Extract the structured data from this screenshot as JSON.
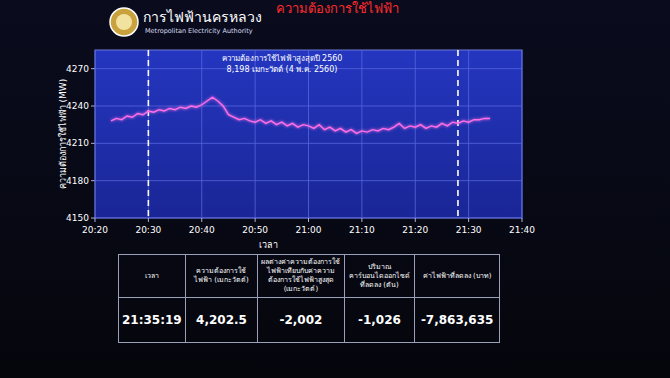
{
  "header": {
    "title": "การไฟฟ้านครหลวง",
    "subtitle": "Metropolitan Electricity Authority",
    "banner": "ความต้องการใช้ไฟฟ้า"
  },
  "chart_data": {
    "type": "line",
    "color": "#ff6ee6",
    "grid": true,
    "annotations": [
      "ความต้องการใช้ไฟฟ้าสูงสุดปี 2560",
      "8,198 เมกะวัตต์ (4 พ.ค. 2560)"
    ],
    "x_label": "เวลา",
    "y_label": "ความต้องการใช้ไฟฟ้า (MW)",
    "xlim": [
      1220,
      1300
    ],
    "xticks": [
      {
        "value": 1220,
        "label": "20:20"
      },
      {
        "value": 1230,
        "label": "20:30"
      },
      {
        "value": 1240,
        "label": "20:40"
      },
      {
        "value": 1250,
        "label": "20:50"
      },
      {
        "value": 1260,
        "label": "21:00"
      },
      {
        "value": 1270,
        "label": "21:10"
      },
      {
        "value": 1280,
        "label": "21:20"
      },
      {
        "value": 1290,
        "label": "21:30"
      },
      {
        "value": 1300,
        "label": "21:40"
      }
    ],
    "ylim": [
      4150,
      4285
    ],
    "yticks": [
      4150,
      4180,
      4210,
      4240,
      4270
    ],
    "vlines": [
      1230,
      1288
    ],
    "x": [
      1223,
      1224,
      1225,
      1226,
      1227,
      1228,
      1229,
      1230,
      1231,
      1232,
      1233,
      1234,
      1235,
      1236,
      1237,
      1238,
      1239,
      1240,
      1241,
      1242,
      1243,
      1244,
      1245,
      1246,
      1247,
      1248,
      1249,
      1250,
      1251,
      1252,
      1253,
      1254,
      1255,
      1256,
      1257,
      1258,
      1259,
      1260,
      1261,
      1262,
      1263,
      1264,
      1265,
      1266,
      1267,
      1268,
      1269,
      1270,
      1271,
      1272,
      1273,
      1274,
      1275,
      1276,
      1277,
      1278,
      1279,
      1280,
      1281,
      1282,
      1283,
      1284,
      1285,
      1286,
      1287,
      1288,
      1289,
      1290,
      1291,
      1292,
      1293,
      1294
    ],
    "values": [
      4228,
      4230,
      4229,
      4232,
      4231,
      4234,
      4233,
      4236,
      4235,
      4237,
      4236,
      4238,
      4237,
      4239,
      4238,
      4240,
      4239,
      4241,
      4244,
      4247,
      4244,
      4240,
      4233,
      4231,
      4229,
      4230,
      4228,
      4227,
      4229,
      4226,
      4228,
      4225,
      4227,
      4224,
      4226,
      4223,
      4225,
      4224,
      4222,
      4225,
      4221,
      4223,
      4220,
      4222,
      4219,
      4221,
      4218,
      4220,
      4219,
      4221,
      4220,
      4222,
      4221,
      4223,
      4226,
      4222,
      4224,
      4223,
      4225,
      4222,
      4224,
      4223,
      4226,
      4224,
      4227,
      4226,
      4228,
      4227,
      4229,
      4229,
      4230,
      4230
    ]
  },
  "table": {
    "header": [
      "เวลา",
      "ความต้องการใช้ไฟฟ้า (เมกะวัตต์)",
      "ผลต่างค่าความต้องการใช้ไฟฟ้าเทียบกับค่าความต้องการใช้ไฟฟ้าสูงสุด (เมกะวัตต์)",
      "ปริมาณคาร์บอนไดออกไซด์ที่ลดลง (ตัน)",
      "ค่าไฟฟ้าที่ลดลง (บาท)"
    ],
    "rows": [
      [
        "21:35:19",
        "4,202.5",
        "-2,002",
        "-1,026",
        "-7,863,635"
      ]
    ]
  }
}
